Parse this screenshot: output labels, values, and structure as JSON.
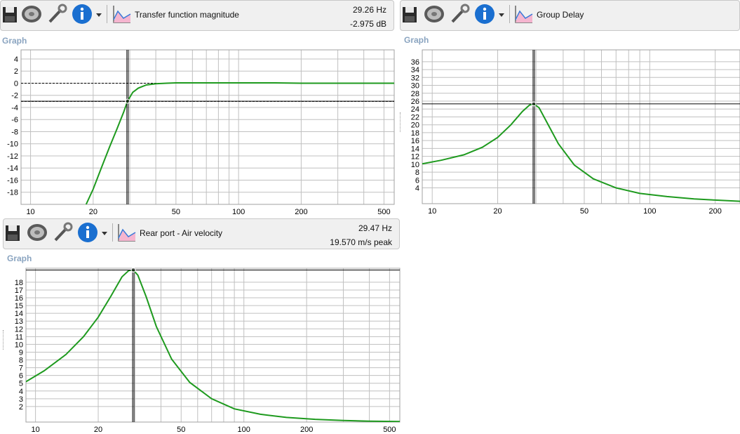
{
  "panels": [
    {
      "title": "Transfer function magnitude",
      "readout_freq": "29.26 Hz",
      "readout_value": "-2.975 dB",
      "graph_label": "Graph"
    },
    {
      "title": "Group Delay",
      "graph_label": "Graph"
    },
    {
      "title": "Rear port - Air velocity",
      "readout_freq": "29.47 Hz",
      "readout_value": "19.570 m/s peak",
      "graph_label": "Graph"
    }
  ],
  "icons": [
    "save-icon",
    "driver-icon",
    "wrench-icon",
    "info-icon",
    "dropdown-arrow-icon",
    "graph-icon"
  ],
  "colors": {
    "curve": "#1e9a1e",
    "grid": "#c0c0c0",
    "cursor": "#000000",
    "label": "#8aa4c0"
  },
  "chart_data": [
    {
      "type": "line",
      "title": "Transfer function magnitude",
      "xscale": "log",
      "xlim": [
        9,
        560
      ],
      "ylim": [
        -20,
        5.5
      ],
      "grid": true,
      "x_ticks": [
        10,
        20,
        50,
        100,
        200,
        500
      ],
      "x_tick_labels": [
        "10",
        "20",
        "50",
        "100",
        "200",
        "500"
      ],
      "y_ticks": [
        4,
        2,
        0,
        -2,
        -4,
        -6,
        -8,
        -10,
        -12,
        -14,
        -16,
        -18
      ],
      "y_tick_labels": [
        "4",
        "2",
        "0",
        "-2",
        "-4",
        "-6",
        "-8",
        "-10",
        "-12",
        "-14",
        "-16",
        "-18"
      ],
      "reference_lines": [
        0,
        -3
      ],
      "cursor": {
        "x": 29.26,
        "y": -2.975
      },
      "series": [
        {
          "x": [
            18.5,
            20,
            22,
            24,
            26,
            28,
            29.26,
            31,
            33,
            36,
            40,
            45,
            50,
            60,
            80,
            100,
            150,
            200,
            300,
            500,
            560
          ],
          "y": [
            -20,
            -17.5,
            -13.8,
            -10.5,
            -7.6,
            -4.8,
            -2.975,
            -1.5,
            -0.8,
            -0.3,
            -0.1,
            0,
            0.05,
            0.05,
            0.05,
            0.05,
            0.05,
            0,
            0,
            0,
            0
          ]
        }
      ]
    },
    {
      "type": "line",
      "title": "Group Delay",
      "xscale": "log",
      "xlim": [
        9,
        260
      ],
      "ylim": [
        0,
        39
      ],
      "grid": true,
      "x_ticks": [
        10,
        20,
        50,
        100,
        200
      ],
      "x_tick_labels": [
        "10",
        "20",
        "50",
        "100",
        "200"
      ],
      "y_ticks": [
        36,
        34,
        32,
        30,
        28,
        26,
        24,
        22,
        20,
        18,
        16,
        14,
        12,
        10,
        8,
        6,
        4
      ],
      "y_tick_labels": [
        "36",
        "34",
        "32",
        "30",
        "28",
        "26",
        "24",
        "22",
        "20",
        "18",
        "16",
        "14",
        12,
        "10",
        "8",
        "6",
        "4"
      ],
      "cursor": {
        "x": 29.3,
        "y": 25.3
      },
      "series": [
        {
          "x": [
            9,
            11,
            14,
            17,
            20,
            23,
            26,
            28,
            29.3,
            31,
            34,
            38,
            45,
            55,
            70,
            90,
            120,
            160,
            200,
            260
          ],
          "y": [
            10.1,
            11,
            12.4,
            14.3,
            16.8,
            20,
            23.4,
            25,
            25.3,
            24.3,
            20.2,
            15.2,
            9.8,
            6.3,
            4,
            2.6,
            1.8,
            1.2,
            0.9,
            0.6
          ]
        }
      ]
    },
    {
      "type": "line",
      "title": "Rear port - Air velocity",
      "xscale": "log",
      "xlim": [
        9,
        560
      ],
      "ylim": [
        0,
        19.8
      ],
      "grid": true,
      "x_ticks": [
        10,
        20,
        50,
        100,
        200,
        500
      ],
      "x_tick_labels": [
        "10",
        "20",
        "50",
        "100",
        "200",
        "500"
      ],
      "y_ticks": [
        18,
        17,
        16,
        15,
        14,
        13,
        12,
        11,
        10,
        9,
        8,
        7,
        6,
        5,
        4,
        3,
        2
      ],
      "y_tick_labels": [
        "18",
        "17",
        "16",
        "15",
        "14",
        "13",
        "12",
        "11",
        "10",
        "9",
        "8",
        "7",
        "6",
        "5",
        "4",
        "3",
        "2"
      ],
      "cursor": {
        "x": 29.47,
        "y": 19.57
      },
      "series": [
        {
          "x": [
            9,
            11,
            14,
            17,
            20,
            23,
            26,
            28,
            29.47,
            31,
            34,
            38,
            45,
            55,
            70,
            90,
            120,
            160,
            220,
            300,
            400,
            560
          ],
          "y": [
            5.2,
            6.6,
            8.7,
            11,
            13.5,
            16.2,
            18.7,
            19.5,
            19.57,
            18.9,
            16.1,
            12.3,
            8.1,
            5.1,
            3,
            1.7,
            1,
            0.6,
            0.35,
            0.2,
            0.12,
            0.07
          ]
        }
      ]
    }
  ]
}
